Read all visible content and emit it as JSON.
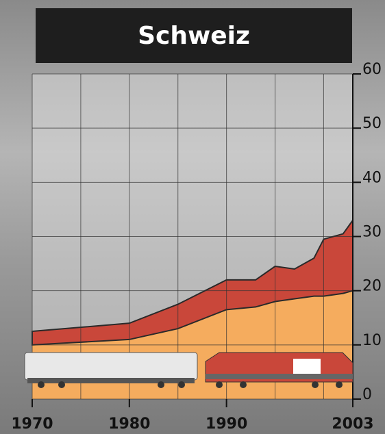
{
  "chart_data": {
    "type": "stacked-area",
    "title": "Schweiz",
    "x": [
      1970,
      1980,
      1985,
      1990,
      1993,
      1995,
      1997,
      1999,
      2000,
      2002,
      2003
    ],
    "series": [
      {
        "color": "#f5ac5e",
        "values": [
          10,
          11,
          13,
          16.5,
          17,
          18,
          18.5,
          19,
          19,
          19.5,
          20
        ]
      },
      {
        "color": "#c9473a",
        "values": [
          2.5,
          3,
          4.5,
          5.5,
          5,
          6.5,
          5.5,
          7,
          10.5,
          11,
          13
        ]
      }
    ],
    "xlim": [
      1970,
      2003
    ],
    "xticks": [
      1970,
      1980,
      1990,
      2003
    ],
    "xgrid": [
      1970,
      1975,
      1980,
      1985,
      1990,
      1995,
      2000,
      2003
    ],
    "ylim": [
      0,
      60
    ],
    "yticks": [
      0,
      10,
      20,
      30,
      40,
      50,
      60
    ],
    "grid": true
  }
}
